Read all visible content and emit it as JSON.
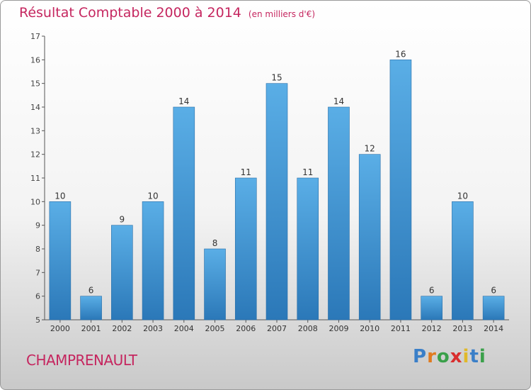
{
  "header": {
    "title": "Résultat Comptable 2000 à 2014",
    "subtitle": "(en milliers d'€)"
  },
  "footer": {
    "commune": "CHAMPRENAULT",
    "logo_text": "Proxiti"
  },
  "colors": {
    "accent": "#c5265f",
    "bar_top": "#5aaee6",
    "bar_bottom": "#2b78b8",
    "axis": "#555555"
  },
  "chart_data": {
    "type": "bar",
    "categories": [
      "2000",
      "2001",
      "2002",
      "2003",
      "2004",
      "2005",
      "2006",
      "2007",
      "2008",
      "2009",
      "2010",
      "2011",
      "2012",
      "2013",
      "2014"
    ],
    "values": [
      10,
      6,
      9,
      10,
      14,
      8,
      11,
      15,
      11,
      14,
      12,
      16,
      6,
      10,
      6
    ],
    "title": "Résultat Comptable 2000 à 2014",
    "subtitle": "(en milliers d'€)",
    "xlabel": "",
    "ylabel": "",
    "ylim": [
      5,
      17
    ],
    "yticks": [
      5,
      6,
      7,
      8,
      9,
      10,
      11,
      12,
      13,
      14,
      15,
      16,
      17
    ],
    "grid": false,
    "data_labels": true
  }
}
